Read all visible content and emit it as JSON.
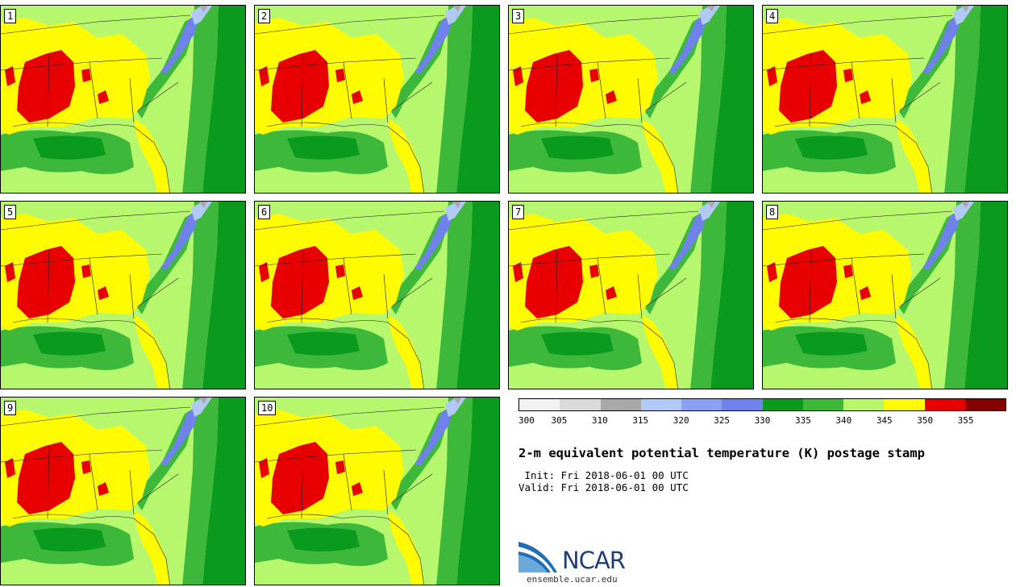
{
  "panels": [
    "1",
    "2",
    "3",
    "4",
    "5",
    "6",
    "7",
    "8",
    "9",
    "10"
  ],
  "legend": {
    "ticks": [
      "300",
      "305",
      "310",
      "315",
      "320",
      "325",
      "330",
      "335",
      "340",
      "345",
      "350",
      "355"
    ],
    "colors": [
      "#f2f2f2",
      "#dadada",
      "#a8a8a8",
      "#b3c9f5",
      "#8aa0f0",
      "#6f82ea",
      "#0a9a1e",
      "#3db83a",
      "#b6f76e",
      "#fffb00",
      "#e80000",
      "#850000"
    ]
  },
  "title": "2-m equivalent potential temperature (K) postage stamp",
  "init_line": " Init: Fri 2018-06-01 00 UTC",
  "valid_line": "Valid: Fri 2018-06-01 00 UTC",
  "logo": {
    "name": "NCAR",
    "site": "ensemble.ucar.edu"
  }
}
